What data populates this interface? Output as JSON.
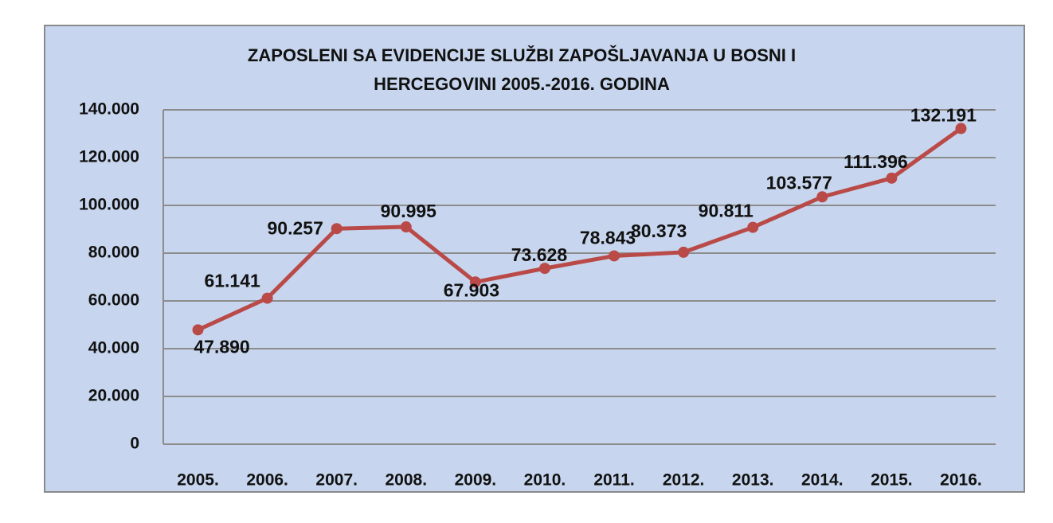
{
  "chart_data": {
    "type": "line",
    "title": "ZAPOSLENI SA EVIDENCIJE SLUŽBI ZAPOŠLJAVANJA U BOSNI I HERCEGOVINI 2005.-2016. GODINA",
    "categories": [
      "2005.",
      "2006.",
      "2007.",
      "2008.",
      "2009.",
      "2010.",
      "2011.",
      "2012.",
      "2013.",
      "2014.",
      "2015.",
      "2016."
    ],
    "values": [
      47890,
      61141,
      90257,
      90995,
      67903,
      73628,
      78843,
      80373,
      90811,
      103577,
      111396,
      132191
    ],
    "value_labels": [
      "47.890",
      "61.141",
      "90.257",
      "90.995",
      "67.903",
      "73.628",
      "78.843",
      "80.373",
      "90.811",
      "103.577",
      "111.396",
      "132.191"
    ],
    "color": "#b94a48",
    "ylim": [
      0,
      140000
    ],
    "yticks": [
      0,
      {
        "value": 20000,
        "label": "20.000"
      },
      {
        "value": 40000,
        "label": "40.000"
      },
      {
        "value": 60000,
        "label": "60.000"
      },
      {
        "value": 80000,
        "label": "80.000"
      },
      {
        "value": 100000,
        "label": "100.000"
      },
      {
        "value": 120000,
        "label": "120.000"
      },
      {
        "value": 140000,
        "label": "140.000"
      }
    ],
    "grid": true
  }
}
